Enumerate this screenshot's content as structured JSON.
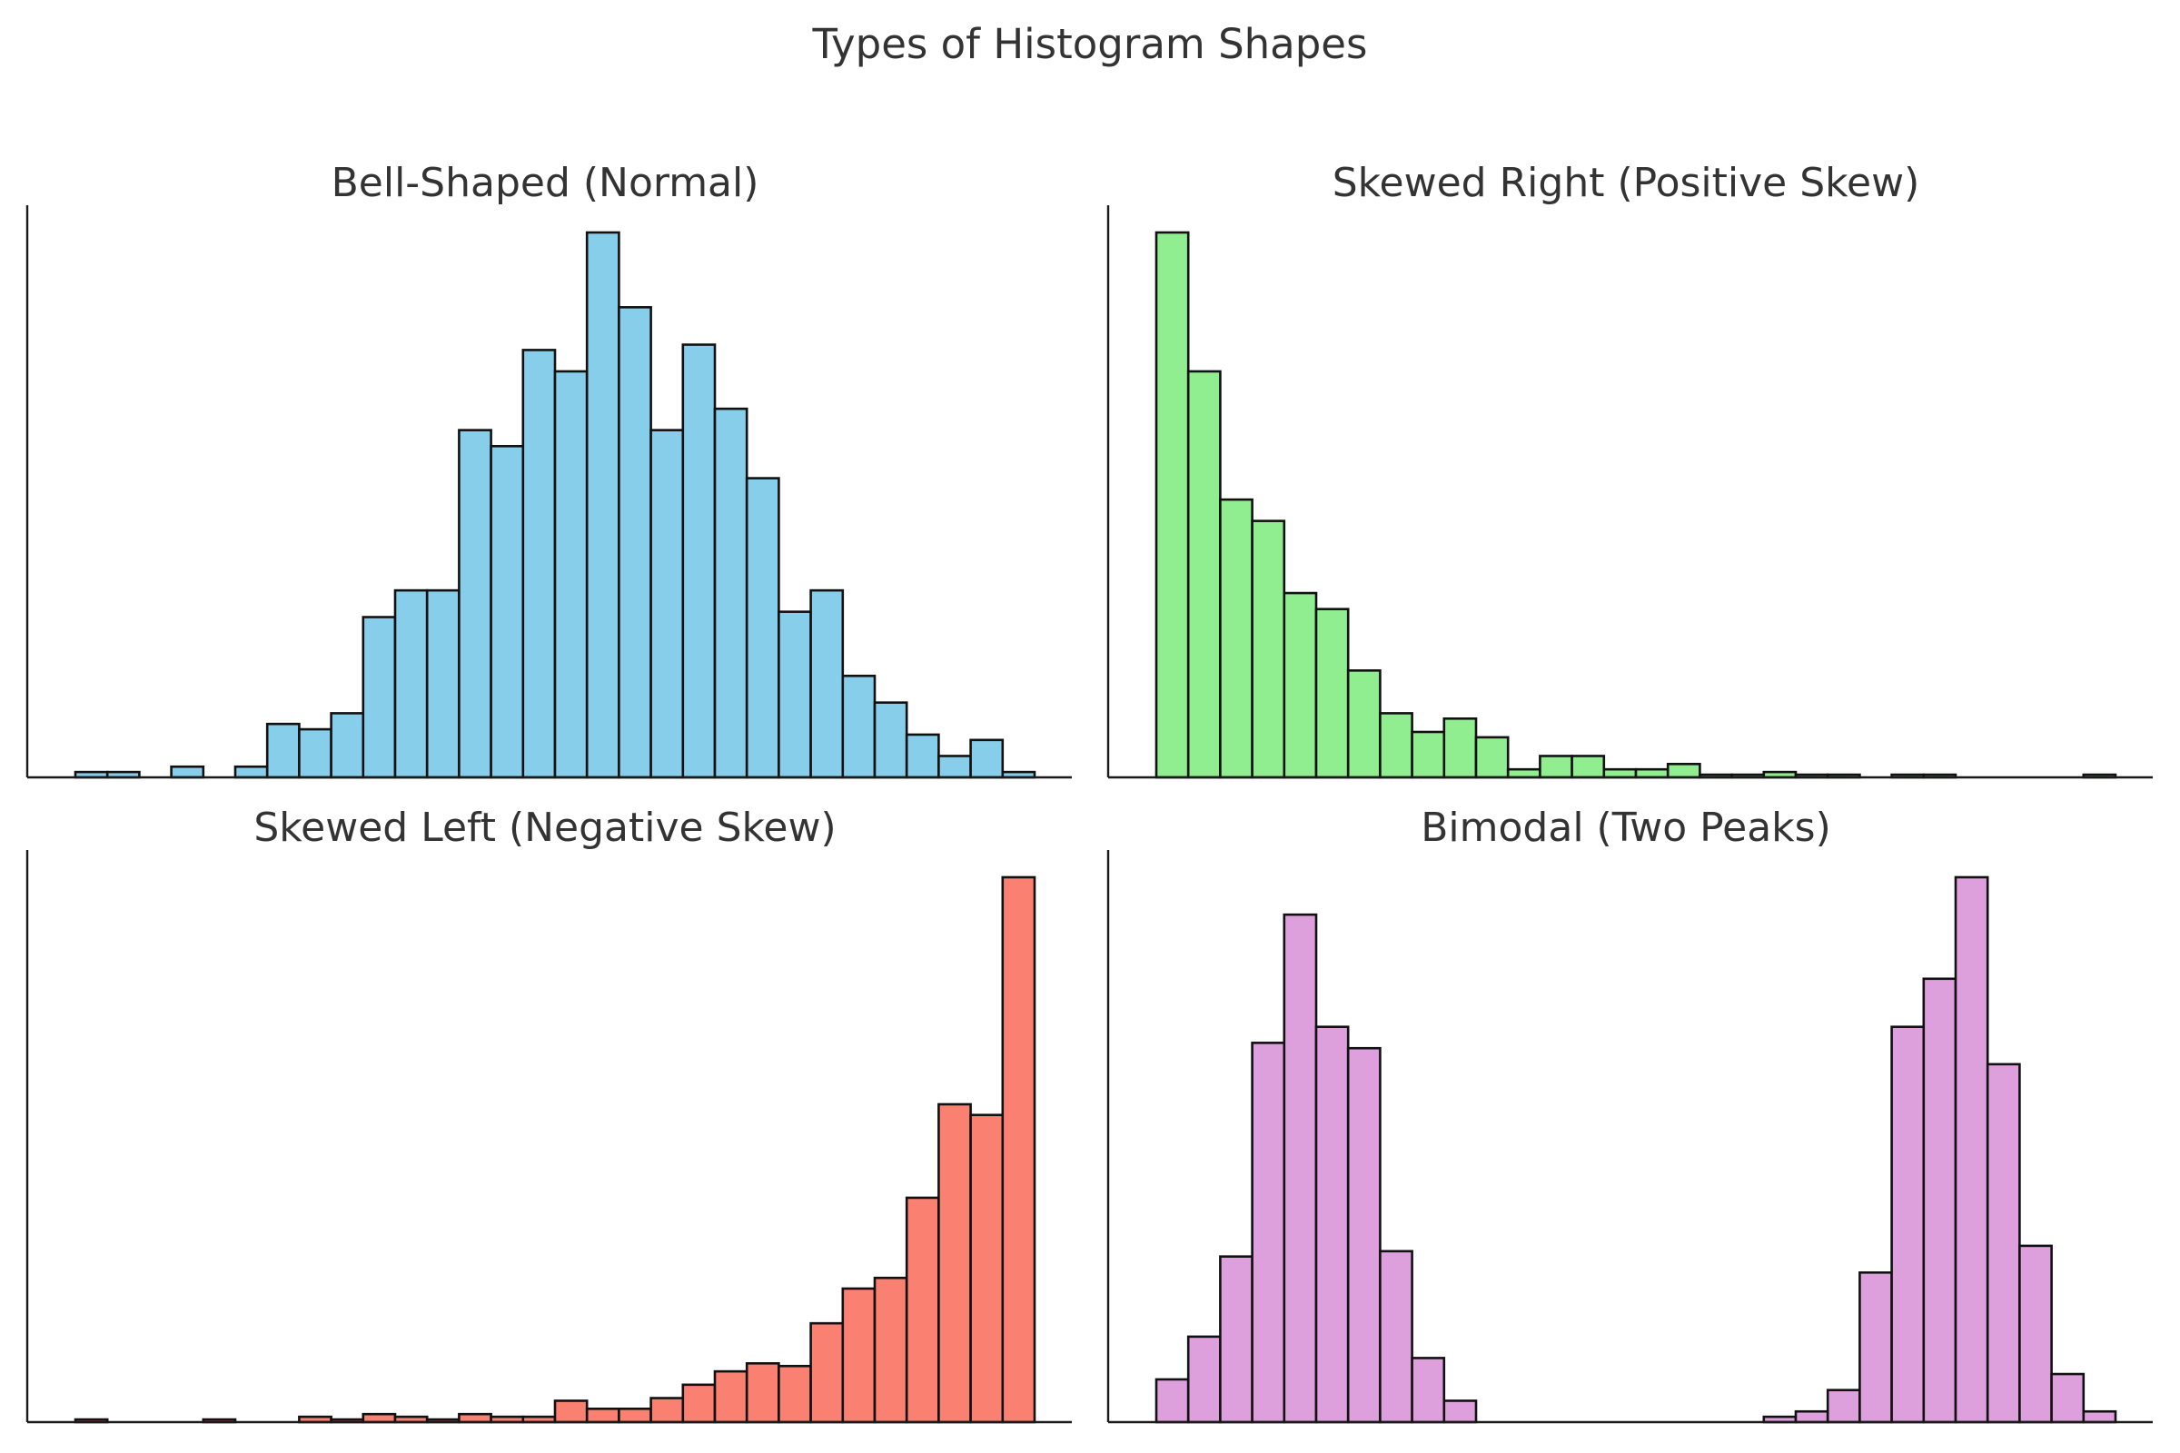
{
  "title": "Types of Histogram Shapes",
  "chart_data": [
    {
      "type": "bar",
      "title": "Bell-Shaped (Normal)",
      "color": "#87CEEB",
      "xlabel": "",
      "ylabel": "",
      "grid": false,
      "ylim": [
        0,
        102
      ],
      "bins": 30,
      "values": [
        1,
        1,
        0,
        2,
        0,
        2,
        10,
        9,
        12,
        30,
        35,
        35,
        65,
        62,
        80,
        76,
        102,
        88,
        65,
        81,
        69,
        56,
        31,
        35,
        19,
        14,
        8,
        4,
        7,
        1
      ]
    },
    {
      "type": "bar",
      "title": "Skewed Right (Positive Skew)",
      "color": "#90EE90",
      "xlabel": "",
      "ylabel": "",
      "grid": false,
      "ylim": [
        0,
        204
      ],
      "bins": 30,
      "values": [
        204,
        152,
        104,
        96,
        69,
        63,
        40,
        24,
        17,
        22,
        15,
        3,
        8,
        8,
        3,
        3,
        5,
        1,
        1,
        2,
        1,
        1,
        0,
        1,
        1,
        0,
        0,
        0,
        0,
        1
      ]
    },
    {
      "type": "bar",
      "title": "Skewed Left (Negative Skew)",
      "color": "#FA8072",
      "xlabel": "",
      "ylabel": "",
      "grid": false,
      "ylim": [
        0,
        204
      ],
      "bins": 30,
      "values": [
        1,
        0,
        0,
        0,
        1,
        0,
        0,
        2,
        1,
        3,
        2,
        1,
        3,
        2,
        2,
        8,
        5,
        5,
        9,
        14,
        19,
        22,
        21,
        37,
        50,
        54,
        84,
        119,
        115,
        204
      ]
    },
    {
      "type": "bar",
      "title": "Bimodal (Two Peaks)",
      "color": "#DDA0DD",
      "xlabel": "",
      "ylabel": "",
      "grid": false,
      "ylim": [
        0,
        102
      ],
      "bins": 30,
      "values": [
        8,
        16,
        31,
        71,
        95,
        74,
        70,
        32,
        12,
        4,
        0,
        0,
        0,
        0,
        0,
        0,
        0,
        0,
        0,
        1,
        2,
        6,
        28,
        74,
        83,
        102,
        67,
        33,
        9,
        2
      ]
    }
  ]
}
